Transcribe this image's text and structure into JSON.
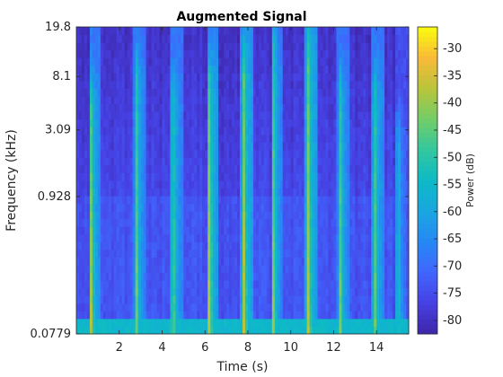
{
  "chart_data": {
    "type": "heatmap",
    "title": "Augmented Signal",
    "xlabel": "Time (s)",
    "ylabel": "Frequency (kHz)",
    "xlim": [
      0,
      15.5
    ],
    "x_ticks": [
      2,
      4,
      6,
      8,
      10,
      12,
      14
    ],
    "x_tick_labels": [
      "2",
      "4",
      "6",
      "8",
      "10",
      "12",
      "14"
    ],
    "y_scale": "log",
    "ylim_khz": [
      0.0779,
      19.8
    ],
    "y_ticks_khz": [
      0.0779,
      0.928,
      3.09,
      8.1,
      19.8
    ],
    "y_tick_labels": [
      "0.0779",
      "0.928",
      "3.09",
      "8.1",
      "19.8"
    ],
    "colorbar": {
      "label": "Power (dB)",
      "range": [
        -82.5,
        -26
      ],
      "ticks": [
        -30,
        -35,
        -40,
        -45,
        -50,
        -55,
        -60,
        -65,
        -70,
        -75,
        -80
      ],
      "tick_labels": [
        "-30",
        "-35",
        "-40",
        "-45",
        "-50",
        "-55",
        "-60",
        "-65",
        "-70",
        "-75",
        "-80"
      ],
      "colormap": "parula"
    },
    "background_power_db": -76,
    "low_band_power_db": -55,
    "onset_events": [
      {
        "time_s": 0.7,
        "peak_db": -38,
        "top_khz": 5.0
      },
      {
        "time_s": 2.8,
        "peak_db": -40,
        "top_khz": 8.1
      },
      {
        "time_s": 4.5,
        "peak_db": -39,
        "top_khz": 5.0
      },
      {
        "time_s": 6.2,
        "peak_db": -36,
        "top_khz": 6.5
      },
      {
        "time_s": 7.8,
        "peak_db": -35,
        "top_khz": 9.0
      },
      {
        "time_s": 9.2,
        "peak_db": -40,
        "top_khz": 12.0
      },
      {
        "time_s": 10.8,
        "peak_db": -35,
        "top_khz": 12.0
      },
      {
        "time_s": 12.3,
        "peak_db": -40,
        "top_khz": 6.0
      },
      {
        "time_s": 13.9,
        "peak_db": -38,
        "top_khz": 5.5
      },
      {
        "time_s": 15.0,
        "peak_db": -45,
        "top_khz": 2.5
      }
    ],
    "grid": false
  }
}
